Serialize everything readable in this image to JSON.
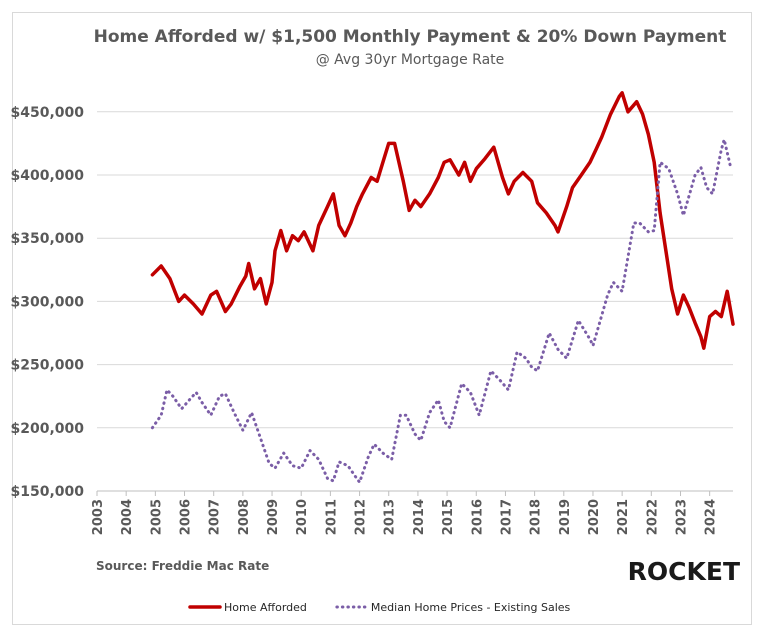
{
  "chart_data": {
    "type": "line",
    "title": "Home Afforded w/ $1,500 Monthly Payment & 20% Down Payment",
    "subtitle": "@ Avg 30yr Mortgage Rate",
    "source": "Source: Freddie Mac Rate",
    "logo": "ROCKET",
    "xlim": [
      2003,
      2024.8
    ],
    "xticks": [
      2003,
      2004,
      2005,
      2006,
      2007,
      2008,
      2009,
      2010,
      2011,
      2012,
      2013,
      2014,
      2015,
      2016,
      2017,
      2018,
      2019,
      2020,
      2021,
      2022,
      2023,
      2024
    ],
    "ylim": [
      150000,
      470000
    ],
    "yticks": [
      {
        "value": 150000,
        "label": "$150,000"
      },
      {
        "value": 200000,
        "label": "$200,000"
      },
      {
        "value": 250000,
        "label": "$250,000"
      },
      {
        "value": 300000,
        "label": "$300,000"
      },
      {
        "value": 350000,
        "label": "$350,000"
      },
      {
        "value": 400000,
        "label": "$400,000"
      },
      {
        "value": 450000,
        "label": "$450,000"
      }
    ],
    "grid": true,
    "legend": "bottom",
    "series": [
      {
        "name": "Home Afforded",
        "color": "#c00000",
        "dash": "solid",
        "x": [
          2004.9,
          2005.2,
          2005.5,
          2005.8,
          2006.0,
          2006.3,
          2006.6,
          2006.9,
          2007.1,
          2007.4,
          2007.6,
          2007.9,
          2008.1,
          2008.2,
          2008.4,
          2008.6,
          2008.8,
          2009.0,
          2009.1,
          2009.3,
          2009.5,
          2009.7,
          2009.9,
          2010.1,
          2010.4,
          2010.6,
          2010.9,
          2011.1,
          2011.3,
          2011.5,
          2011.7,
          2011.9,
          2012.1,
          2012.4,
          2012.6,
          2012.8,
          2013.0,
          2013.2,
          2013.5,
          2013.7,
          2013.9,
          2014.1,
          2014.4,
          2014.7,
          2014.9,
          2015.1,
          2015.4,
          2015.6,
          2015.8,
          2016.0,
          2016.3,
          2016.6,
          2016.9,
          2017.1,
          2017.3,
          2017.6,
          2017.9,
          2018.1,
          2018.4,
          2018.7,
          2018.8,
          2019.1,
          2019.3,
          2019.6,
          2019.9,
          2020.1,
          2020.3,
          2020.6,
          2020.9,
          2021.0,
          2021.2,
          2021.5,
          2021.7,
          2021.9,
          2022.1,
          2022.3,
          2022.5,
          2022.7,
          2022.9,
          2023.1,
          2023.3,
          2023.5,
          2023.7,
          2023.8,
          2024.0,
          2024.2,
          2024.4,
          2024.6,
          2024.7,
          2024.8
        ],
        "values": [
          321000,
          328000,
          318000,
          300000,
          305000,
          298000,
          290000,
          305000,
          308000,
          292000,
          298000,
          312000,
          320000,
          330000,
          310000,
          318000,
          298000,
          315000,
          340000,
          356000,
          340000,
          352000,
          348000,
          355000,
          340000,
          360000,
          375000,
          385000,
          360000,
          352000,
          362000,
          375000,
          385000,
          398000,
          395000,
          410000,
          425000,
          425000,
          395000,
          372000,
          380000,
          375000,
          385000,
          398000,
          410000,
          412000,
          400000,
          410000,
          395000,
          405000,
          413000,
          422000,
          398000,
          385000,
          395000,
          402000,
          395000,
          378000,
          370000,
          360000,
          355000,
          375000,
          390000,
          400000,
          410000,
          420000,
          430000,
          448000,
          462000,
          465000,
          450000,
          458000,
          448000,
          432000,
          410000,
          370000,
          340000,
          310000,
          290000,
          305000,
          295000,
          283000,
          272000,
          263000,
          288000,
          292000,
          288000,
          308000,
          295000,
          282000
        ]
      },
      {
        "name": "Median Home Prices - Existing Sales",
        "color": "#7b5ea7",
        "dash": "dotted",
        "x": [
          2004.9,
          2005.2,
          2005.4,
          2005.6,
          2005.9,
          2006.2,
          2006.4,
          2006.6,
          2006.9,
          2007.2,
          2007.4,
          2007.7,
          2008.0,
          2008.3,
          2008.6,
          2008.9,
          2009.1,
          2009.4,
          2009.7,
          2010.0,
          2010.3,
          2010.6,
          2010.9,
          2011.1,
          2011.3,
          2011.6,
          2011.9,
          2012.0,
          2012.3,
          2012.5,
          2012.8,
          2013.1,
          2013.4,
          2013.6,
          2013.9,
          2014.1,
          2014.4,
          2014.7,
          2014.9,
          2015.1,
          2015.5,
          2015.8,
          2016.1,
          2016.5,
          2016.8,
          2017.1,
          2017.4,
          2017.7,
          2017.9,
          2018.1,
          2018.5,
          2018.8,
          2019.1,
          2019.5,
          2019.9,
          2020.0,
          2020.5,
          2020.7,
          2021.0,
          2021.4,
          2021.6,
          2021.9,
          2022.1,
          2022.3,
          2022.6,
          2022.9,
          2023.1,
          2023.5,
          2023.7,
          2023.9,
          2024.1,
          2024.4,
          2024.5,
          2024.7,
          2024.75
        ],
        "values": [
          200000,
          210000,
          230000,
          225000,
          215000,
          223000,
          228000,
          220000,
          210000,
          225000,
          227000,
          212000,
          198000,
          212000,
          192000,
          172000,
          168000,
          180000,
          170000,
          168000,
          182000,
          175000,
          160000,
          158000,
          173000,
          170000,
          160000,
          157000,
          177000,
          187000,
          180000,
          175000,
          210000,
          210000,
          195000,
          190000,
          212000,
          222000,
          205000,
          200000,
          235000,
          228000,
          210000,
          245000,
          238000,
          230000,
          260000,
          255000,
          248000,
          245000,
          275000,
          262000,
          255000,
          285000,
          270000,
          265000,
          305000,
          315000,
          308000,
          362000,
          362000,
          355000,
          356000,
          410000,
          405000,
          385000,
          368000,
          400000,
          406000,
          390000,
          385000,
          420000,
          428000,
          408000,
          405000
        ]
      }
    ]
  }
}
